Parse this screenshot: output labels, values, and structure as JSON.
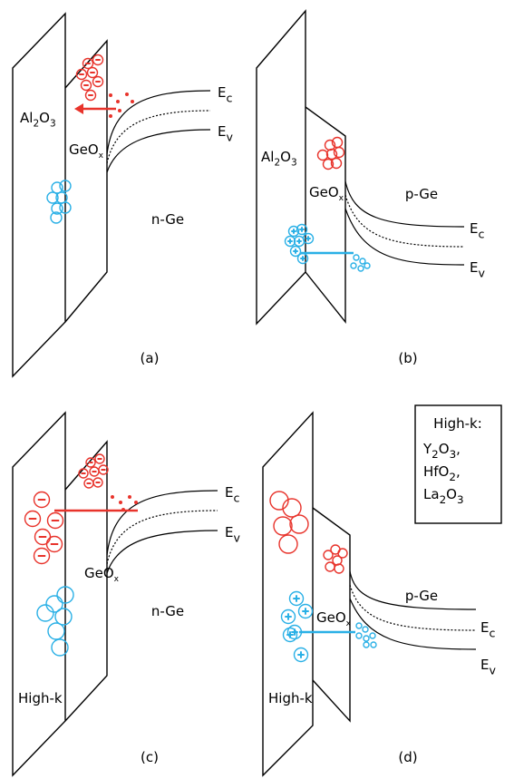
{
  "panels": [
    {
      "label": "(a)",
      "substrate": "n-Ge",
      "dielectric": [
        "Al",
        "2",
        "O",
        "3"
      ],
      "interlayer": [
        "GeO",
        "x"
      ],
      "conduction": [
        "E",
        "c"
      ],
      "valence": [
        "E",
        "v"
      ]
    },
    {
      "label": "(b)",
      "substrate": "p-Ge",
      "dielectric": [
        "Al",
        "2",
        "O",
        "3"
      ],
      "interlayer": [
        "GeO",
        "x"
      ],
      "conduction": [
        "E",
        "c"
      ],
      "valence": [
        "E",
        "v"
      ]
    },
    {
      "label": "(c)",
      "substrate": "n-Ge",
      "dielectric": [
        "High-k"
      ],
      "interlayer": [
        "GeO",
        "x"
      ],
      "conduction": [
        "E",
        "c"
      ],
      "valence": [
        "E",
        "v"
      ]
    },
    {
      "label": "(d)",
      "substrate": "p-Ge",
      "dielectric": [
        "High-k"
      ],
      "interlayer": [
        "GeO",
        "x"
      ],
      "conduction": [
        "E",
        "c"
      ],
      "valence": [
        "E",
        "v"
      ]
    }
  ],
  "legend": {
    "title": "High-k:",
    "items": [
      [
        "Y",
        "2",
        "O",
        "3",
        ","
      ],
      [
        "HfO",
        "2",
        ","
      ],
      [
        "La",
        "2",
        "O",
        "3"
      ]
    ]
  }
}
